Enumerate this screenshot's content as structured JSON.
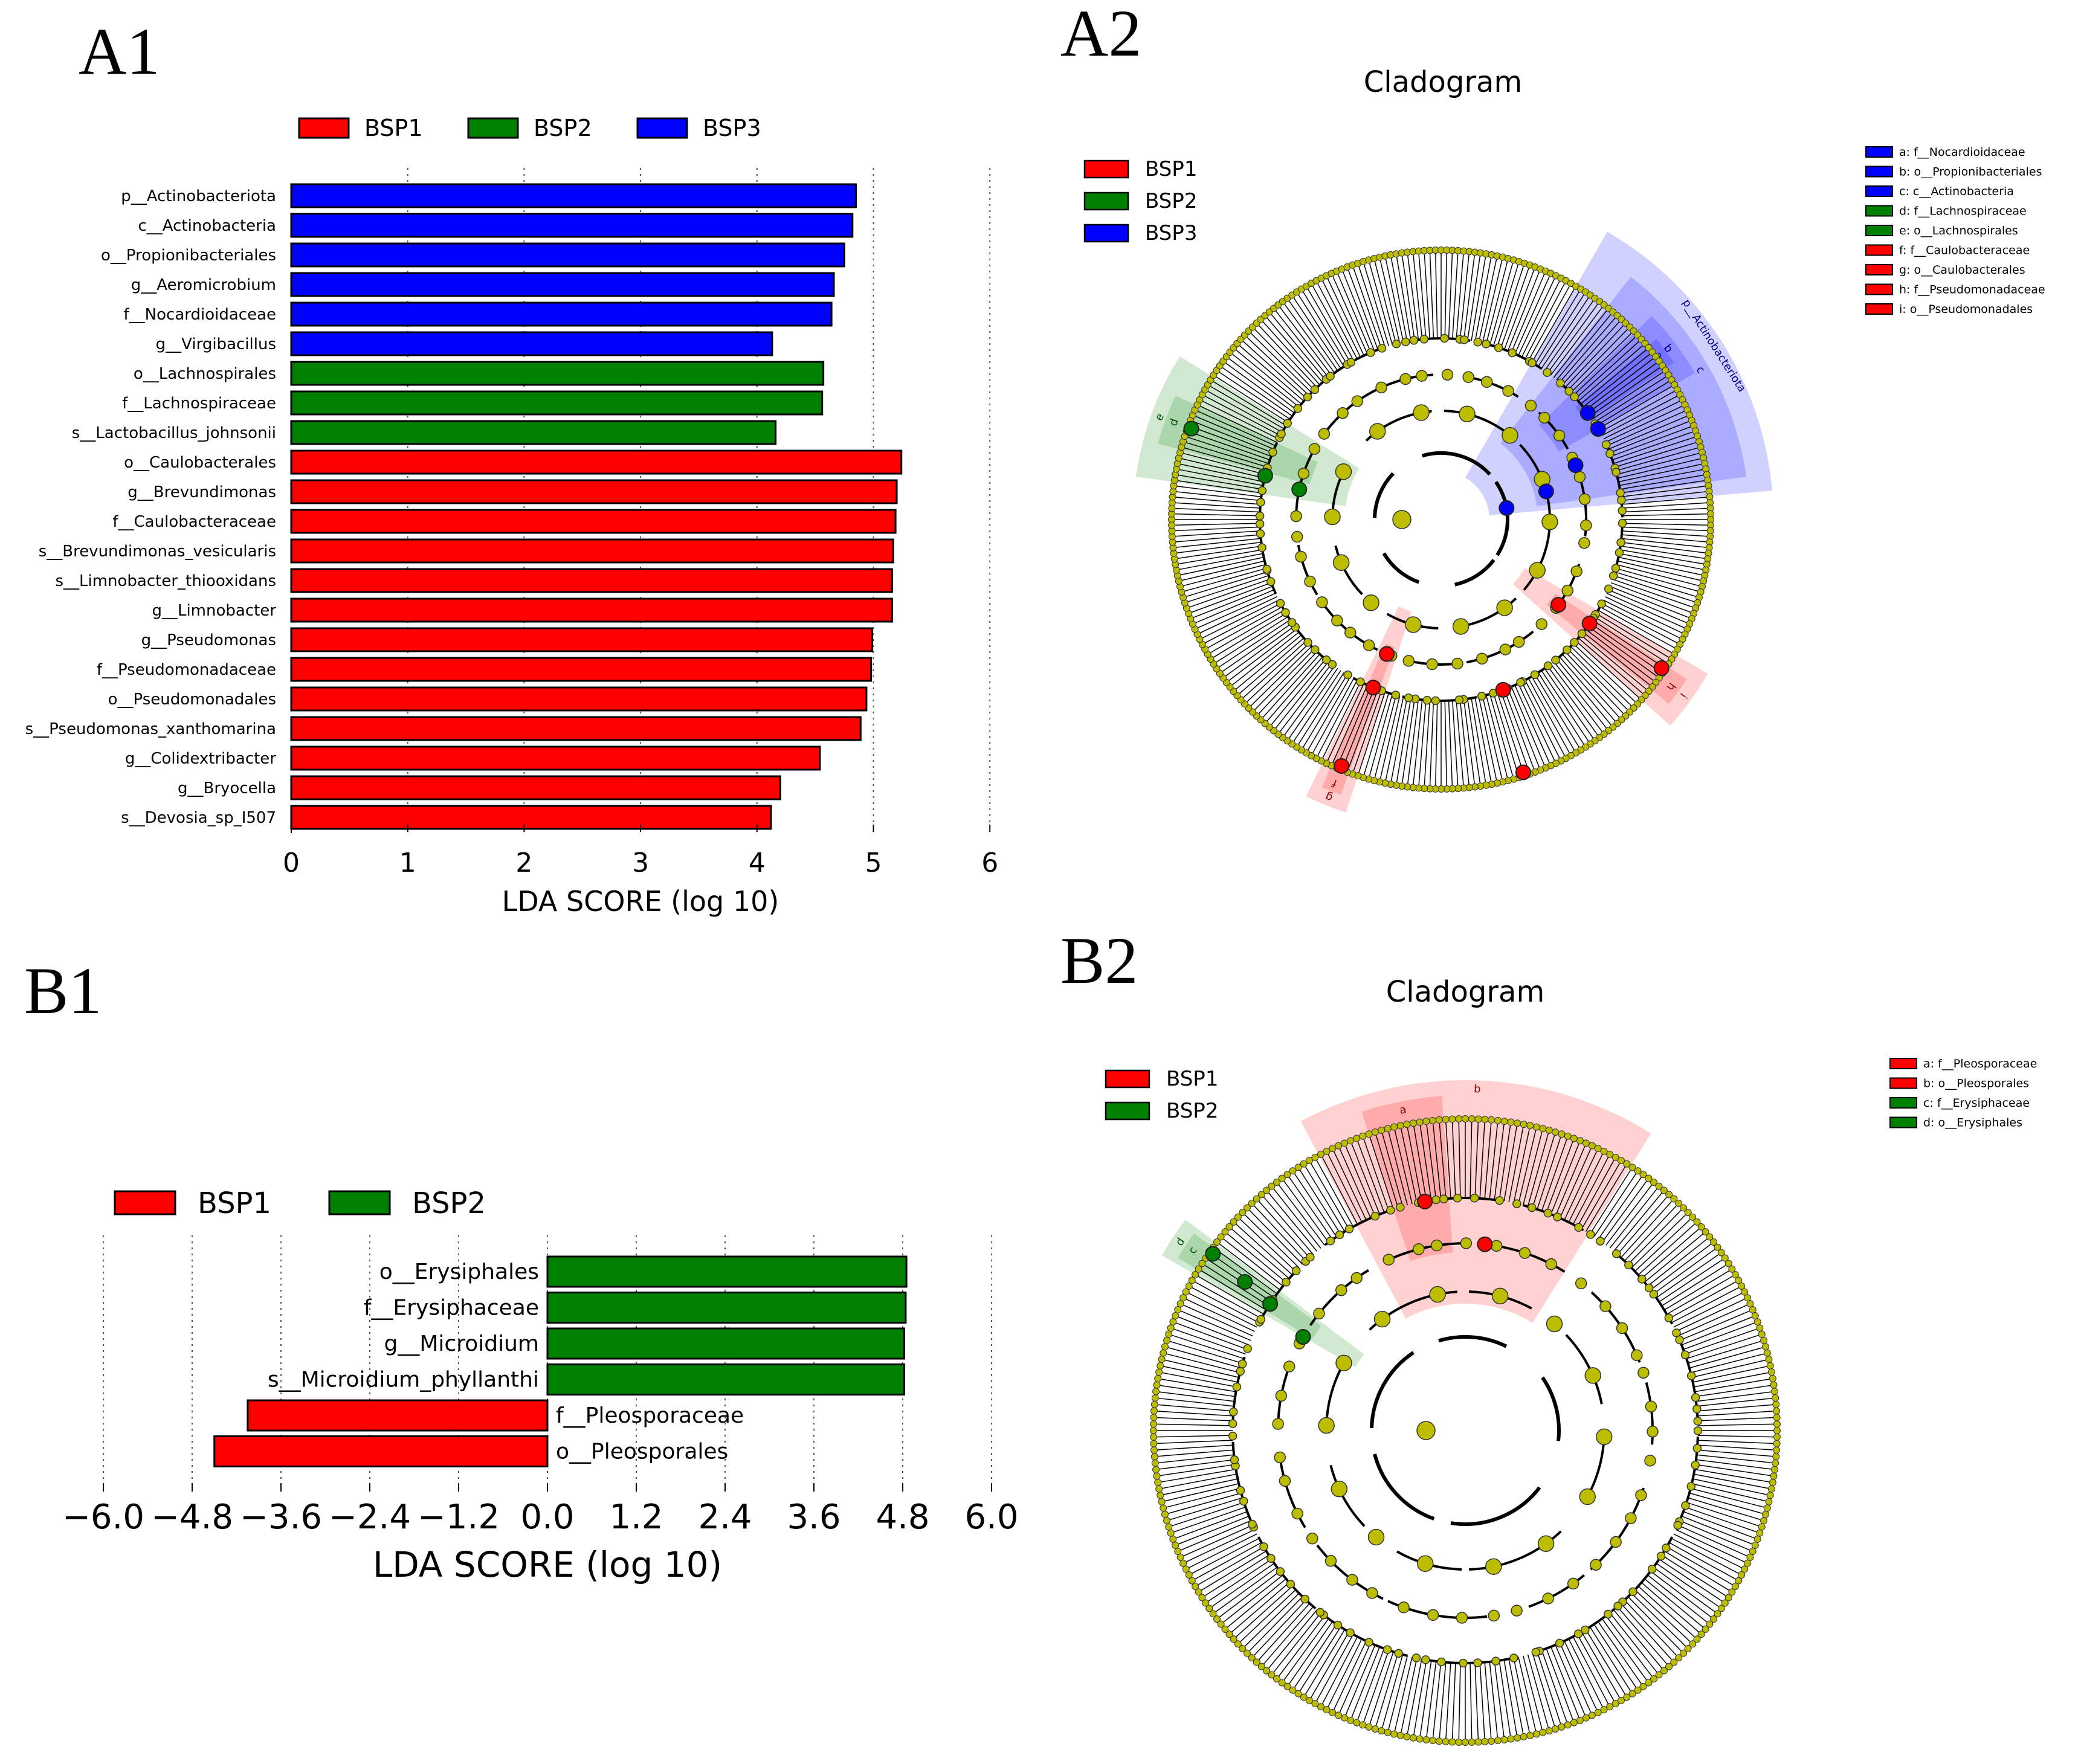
{
  "panels": {
    "a1": "A1",
    "a2": "A2",
    "b1": "B1",
    "b2": "B2"
  },
  "colors": {
    "BSP1": "#ff0000",
    "BSP2": "#008000",
    "BSP3": "#0000ff",
    "node": "#bdbd00"
  },
  "chart_data": [
    {
      "id": "A1",
      "type": "bar",
      "orientation": "horizontal",
      "legend": [
        "BSP1",
        "BSP2",
        "BSP3"
      ],
      "xlabel": "LDA SCORE (log 10)",
      "xlim": [
        0,
        6
      ],
      "xticks": [
        "0",
        "1",
        "2",
        "3",
        "4",
        "5",
        "6"
      ],
      "bars": [
        {
          "label": "p__Actinobacteriota",
          "value": 4.85,
          "group": "BSP3"
        },
        {
          "label": "c__Actinobacteria",
          "value": 4.82,
          "group": "BSP3"
        },
        {
          "label": "o__Propionibacteriales",
          "value": 4.75,
          "group": "BSP3"
        },
        {
          "label": "g__Aeromicrobium",
          "value": 4.66,
          "group": "BSP3"
        },
        {
          "label": "f__Nocardioidaceae",
          "value": 4.64,
          "group": "BSP3"
        },
        {
          "label": "g__Virgibacillus",
          "value": 4.13,
          "group": "BSP3"
        },
        {
          "label": "o__Lachnospirales",
          "value": 4.57,
          "group": "BSP2"
        },
        {
          "label": "f__Lachnospiraceae",
          "value": 4.56,
          "group": "BSP2"
        },
        {
          "label": "s__Lactobacillus_johnsonii",
          "value": 4.16,
          "group": "BSP2"
        },
        {
          "label": "o__Caulobacterales",
          "value": 5.24,
          "group": "BSP1"
        },
        {
          "label": "g__Brevundimonas",
          "value": 5.2,
          "group": "BSP1"
        },
        {
          "label": "f__Caulobacteraceae",
          "value": 5.19,
          "group": "BSP1"
        },
        {
          "label": "s__Brevundimonas_vesicularis",
          "value": 5.17,
          "group": "BSP1"
        },
        {
          "label": "s__Limnobacter_thiooxidans",
          "value": 5.16,
          "group": "BSP1"
        },
        {
          "label": "g__Limnobacter",
          "value": 5.16,
          "group": "BSP1"
        },
        {
          "label": "g__Pseudomonas",
          "value": 4.99,
          "group": "BSP1"
        },
        {
          "label": "f__Pseudomonadaceae",
          "value": 4.98,
          "group": "BSP1"
        },
        {
          "label": "o__Pseudomonadales",
          "value": 4.94,
          "group": "BSP1"
        },
        {
          "label": "s__Pseudomonas_xanthomarina",
          "value": 4.89,
          "group": "BSP1"
        },
        {
          "label": "g__Colidextribacter",
          "value": 4.54,
          "group": "BSP1"
        },
        {
          "label": "g__Bryocella",
          "value": 4.2,
          "group": "BSP1"
        },
        {
          "label": "s__Devosia_sp_I507",
          "value": 4.12,
          "group": "BSP1"
        }
      ]
    },
    {
      "id": "B1",
      "type": "bar",
      "orientation": "horizontal",
      "legend": [
        "BSP1",
        "BSP2"
      ],
      "xlabel": "LDA SCORE (log 10)",
      "xlim": [
        -6.0,
        6.0
      ],
      "xticks": [
        "−6.0",
        "−4.8",
        "−3.6",
        "−2.4",
        "−1.2",
        "0.0",
        "1.2",
        "2.4",
        "3.6",
        "4.8",
        "6.0"
      ],
      "bars": [
        {
          "label": "o__Erysiphales",
          "value": 4.85,
          "group": "BSP2"
        },
        {
          "label": "f__Erysiphaceae",
          "value": 4.84,
          "group": "BSP2"
        },
        {
          "label": "g__Microidium",
          "value": 4.82,
          "group": "BSP2"
        },
        {
          "label": "s__Microidium_phyllanthi",
          "value": 4.82,
          "group": "BSP2"
        },
        {
          "label": "f__Pleosporaceae",
          "value": -4.05,
          "group": "BSP1"
        },
        {
          "label": "o__Pleosporales",
          "value": -4.5,
          "group": "BSP1"
        }
      ]
    },
    {
      "id": "A2",
      "type": "cladogram",
      "title": "Cladogram",
      "legend": [
        "BSP1",
        "BSP2",
        "BSP3"
      ],
      "clade_keys": [
        {
          "text": "a: f__Nocardioidaceae",
          "group": "BSP3"
        },
        {
          "text": "b: o__Propionibacteriales",
          "group": "BSP3"
        },
        {
          "text": "c: c__Actinobacteria",
          "group": "BSP3"
        },
        {
          "text": "d: f__Lachnospiraceae",
          "group": "BSP2"
        },
        {
          "text": "e: o__Lachnospirales",
          "group": "BSP2"
        },
        {
          "text": "f: f__Caulobacteraceae",
          "group": "BSP1"
        },
        {
          "text": "g: o__Caulobacterales",
          "group": "BSP1"
        },
        {
          "text": "h: f__Pseudomonadaceae",
          "group": "BSP1"
        },
        {
          "text": "i: o__Pseudomonadales",
          "group": "BSP1"
        }
      ],
      "sectors": [
        {
          "from_deg": -60,
          "to_deg": -5,
          "levels": 4,
          "group": "BSP3",
          "tag": "p__Actinobacteriota"
        },
        {
          "from_deg": -52,
          "to_deg": -8,
          "levels": 3,
          "group": "BSP3",
          "tag": "c"
        },
        {
          "from_deg": -44,
          "to_deg": -30,
          "levels": 2,
          "group": "BSP3",
          "tag": "b"
        },
        {
          "from_deg": -40,
          "to_deg": -34,
          "levels": 1,
          "group": "BSP3",
          "tag": "a"
        },
        {
          "from_deg": -172,
          "to_deg": -148,
          "levels": 3,
          "group": "BSP2",
          "tag": "e"
        },
        {
          "from_deg": -165,
          "to_deg": -155,
          "levels": 2,
          "group": "BSP2",
          "tag": "d"
        },
        {
          "from_deg": 30,
          "to_deg": 42,
          "levels": 3,
          "group": "BSP1",
          "tag": "i"
        },
        {
          "from_deg": 33,
          "to_deg": 39,
          "levels": 2,
          "group": "BSP1",
          "tag": "h"
        },
        {
          "from_deg": 108,
          "to_deg": 116,
          "levels": 3,
          "group": "BSP1",
          "tag": "g"
        },
        {
          "from_deg": 110,
          "to_deg": 114,
          "levels": 2,
          "group": "BSP1",
          "tag": "f"
        }
      ]
    },
    {
      "id": "B2",
      "type": "cladogram",
      "title": "Cladogram",
      "legend": [
        "BSP1",
        "BSP2"
      ],
      "clade_keys": [
        {
          "text": "a: f__Pleosporaceae",
          "group": "BSP1"
        },
        {
          "text": "b: o__Pleosporales",
          "group": "BSP1"
        },
        {
          "text": "c: f__Erysiphaceae",
          "group": "BSP2"
        },
        {
          "text": "d: o__Erysiphales",
          "group": "BSP2"
        }
      ],
      "sectors": [
        {
          "from_deg": -118,
          "to_deg": -58,
          "levels": 3,
          "group": "BSP1",
          "tag": "b"
        },
        {
          "from_deg": -108,
          "to_deg": -94,
          "levels": 2,
          "group": "BSP1",
          "tag": "a"
        },
        {
          "from_deg": -150,
          "to_deg": -143,
          "levels": 3,
          "group": "BSP2",
          "tag": "d"
        },
        {
          "from_deg": -149,
          "to_deg": -144,
          "levels": 2,
          "group": "BSP2",
          "tag": "c"
        }
      ]
    }
  ]
}
